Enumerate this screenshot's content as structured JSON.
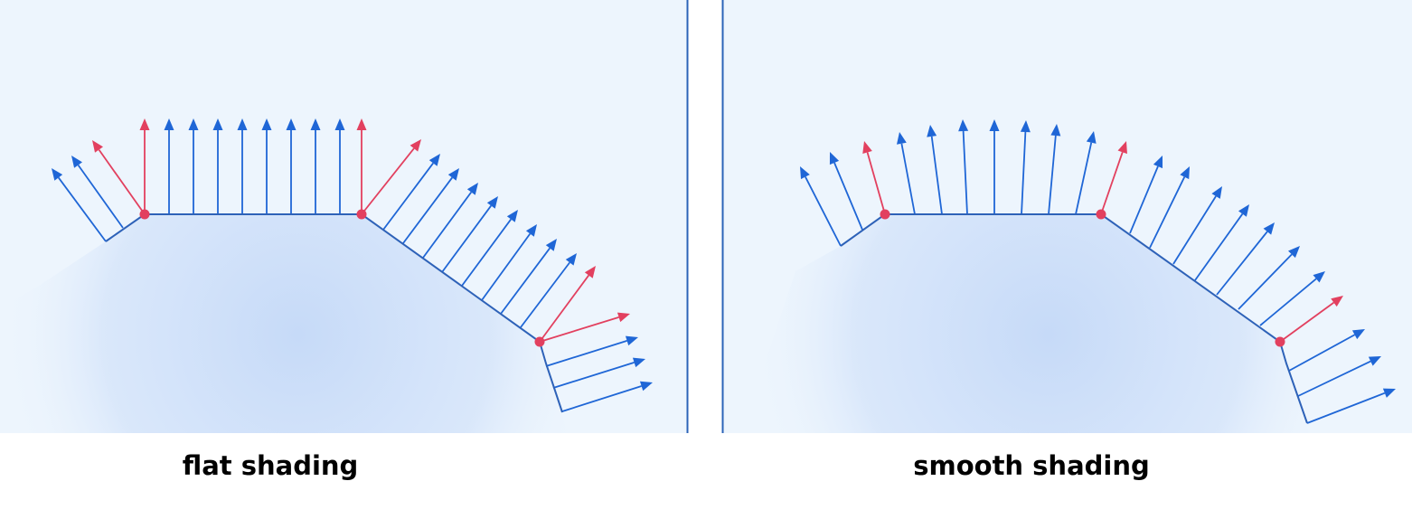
{
  "captions": {
    "flat": "flat shading",
    "smooth": "smooth shading"
  },
  "colors": {
    "panel_bg": "#edf5fd",
    "panel_border": "#2b63b8",
    "surface_line": "#2e62b8",
    "normal_blue": "#1f66d6",
    "normal_red": "#e2405f",
    "vertex_red": "#e2405f",
    "fill_blue": "#c9dcf8"
  },
  "diagram": {
    "flat_panel": {
      "shading": "flat",
      "vertex_normal_count": 4,
      "face_normal_count": 23
    },
    "smooth_panel": {
      "shading": "smooth",
      "vertex_normal_count": 4,
      "interpolated_normal_count": 23
    }
  }
}
